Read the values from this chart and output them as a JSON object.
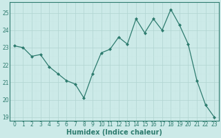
{
  "x": [
    0,
    1,
    2,
    3,
    4,
    5,
    6,
    7,
    8,
    9,
    10,
    11,
    12,
    13,
    14,
    15,
    16,
    17,
    18,
    19,
    20,
    21,
    22,
    23
  ],
  "y": [
    23.1,
    23.0,
    22.5,
    22.6,
    21.9,
    21.5,
    21.1,
    20.9,
    20.1,
    21.5,
    22.7,
    22.9,
    23.6,
    23.2,
    24.65,
    23.85,
    24.65,
    24.0,
    25.2,
    24.3,
    23.2,
    21.1,
    19.7,
    19.0
  ],
  "line_color": "#2d7b6e",
  "marker": "D",
  "marker_size": 2.0,
  "bg_color": "#cceae8",
  "grid_major_color": "#b0d4d0",
  "grid_minor_color": "#c8e8e4",
  "xlabel": "Humidex (Indice chaleur)",
  "ylim": [
    18.8,
    25.6
  ],
  "xlim": [
    -0.5,
    23.5
  ],
  "yticks": [
    19,
    20,
    21,
    22,
    23,
    24,
    25
  ],
  "xticks": [
    0,
    1,
    2,
    3,
    4,
    5,
    6,
    7,
    8,
    9,
    10,
    11,
    12,
    13,
    14,
    15,
    16,
    17,
    18,
    19,
    20,
    21,
    22,
    23
  ],
  "tick_color": "#2d7b6e",
  "label_color": "#2d7b6e",
  "spine_color": "#2d7b6e",
  "tick_fontsize": 5.5,
  "xlabel_fontsize": 7.0,
  "linewidth": 0.9
}
